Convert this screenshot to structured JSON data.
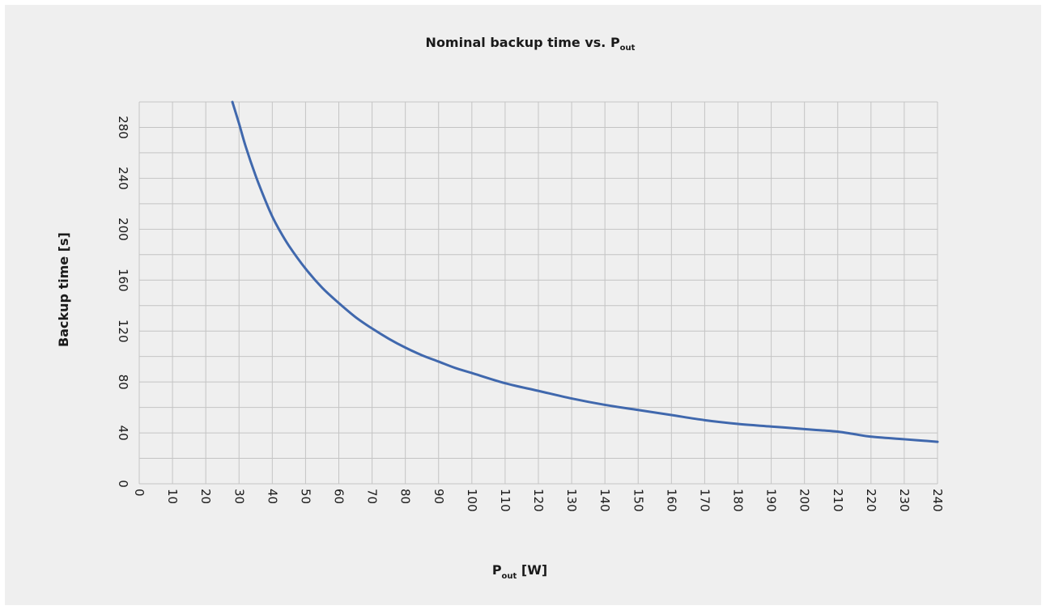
{
  "chart_data": {
    "type": "line",
    "title": {
      "main": "Nominal backup time vs. P",
      "subscript": "out"
    },
    "xlabel": {
      "main": "P",
      "subscript": "out",
      "suffix": " [W]"
    },
    "ylabel": "Backup time [s]",
    "xlim": [
      0,
      240
    ],
    "ylim": [
      0,
      300
    ],
    "x_ticks": [
      0,
      10,
      20,
      30,
      40,
      50,
      60,
      70,
      80,
      90,
      100,
      110,
      120,
      130,
      140,
      150,
      160,
      170,
      180,
      190,
      200,
      210,
      220,
      230,
      240
    ],
    "y_ticks": [
      0,
      40,
      80,
      120,
      160,
      200,
      240,
      280
    ],
    "x_grid_step": 10,
    "y_grid_step": 20,
    "grid": true,
    "tick_label_rotation": 90,
    "series": [
      {
        "color": "#4068ad",
        "x": [
          28,
          30,
          32,
          35,
          38,
          40,
          42,
          45,
          50,
          55,
          60,
          65,
          70,
          75,
          80,
          85,
          90,
          95,
          100,
          110,
          120,
          130,
          140,
          150,
          160,
          170,
          180,
          190,
          200,
          205,
          210,
          215,
          220,
          230,
          240
        ],
        "y": [
          300,
          283,
          265,
          242,
          222,
          210,
          200,
          187,
          169,
          154,
          142,
          131,
          122,
          114,
          107,
          101,
          96,
          91,
          87,
          79,
          73,
          67,
          62,
          58,
          54,
          50,
          47,
          45,
          43,
          42,
          41,
          39,
          37,
          35,
          33
        ]
      }
    ]
  }
}
